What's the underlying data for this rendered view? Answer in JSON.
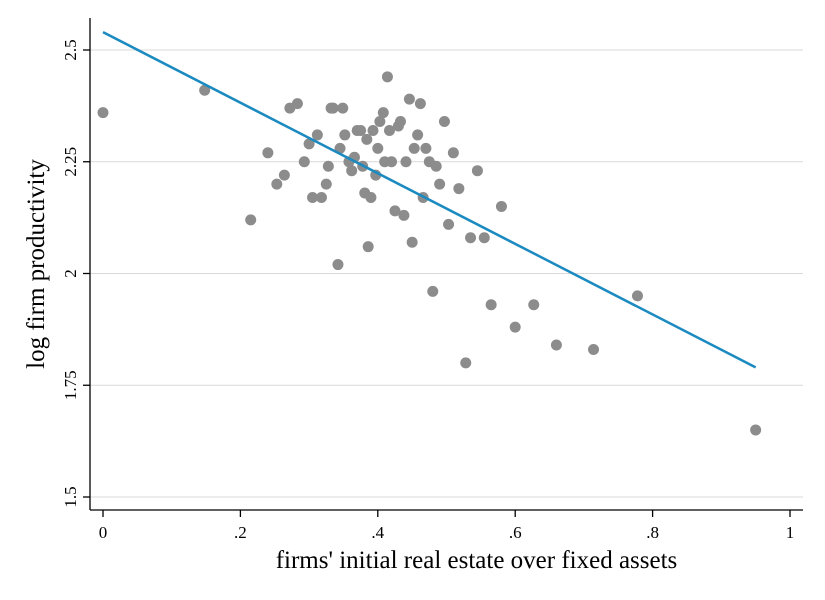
{
  "chart_data": {
    "type": "scatter",
    "title": "",
    "xlabel": "firms' initial real estate over fixed assets",
    "ylabel": "log firm productivity",
    "xlim": [
      0,
      1
    ],
    "ylim": [
      1.5,
      2.5
    ],
    "x_ticks": [
      0,
      0.2,
      0.4,
      0.6,
      0.8,
      1
    ],
    "x_tick_labels": [
      "0",
      ".2",
      ".4",
      ".6",
      ".8",
      "1"
    ],
    "y_ticks": [
      1.5,
      1.75,
      2,
      2.25,
      2.5
    ],
    "y_tick_labels": [
      "1.5",
      "1.75",
      "2",
      "2.25",
      "2.5"
    ],
    "grid": "horizontal",
    "legend": "none",
    "colors": {
      "points": "#8c8c8c",
      "fit_line": "#1a8ac0",
      "grid": "#d9d9d9",
      "axis": "#000000"
    },
    "series": [
      {
        "type": "scatter",
        "x": [
          0.0,
          0.148,
          0.215,
          0.24,
          0.253,
          0.264,
          0.272,
          0.283,
          0.293,
          0.3,
          0.305,
          0.312,
          0.318,
          0.325,
          0.328,
          0.332,
          0.335,
          0.342,
          0.345,
          0.349,
          0.352,
          0.358,
          0.362,
          0.366,
          0.37,
          0.375,
          0.378,
          0.381,
          0.384,
          0.386,
          0.39,
          0.393,
          0.397,
          0.4,
          0.403,
          0.408,
          0.41,
          0.414,
          0.417,
          0.42,
          0.425,
          0.43,
          0.433,
          0.438,
          0.441,
          0.446,
          0.45,
          0.453,
          0.458,
          0.462,
          0.466,
          0.47,
          0.475,
          0.48,
          0.485,
          0.49,
          0.497,
          0.503,
          0.51,
          0.518,
          0.528,
          0.535,
          0.545,
          0.555,
          0.565,
          0.58,
          0.6,
          0.627,
          0.66,
          0.714,
          0.778,
          0.95
        ],
        "y": [
          2.36,
          2.41,
          2.12,
          2.27,
          2.2,
          2.22,
          2.37,
          2.38,
          2.25,
          2.29,
          2.17,
          2.31,
          2.17,
          2.2,
          2.24,
          2.37,
          2.37,
          2.02,
          2.28,
          2.37,
          2.31,
          2.25,
          2.23,
          2.26,
          2.32,
          2.32,
          2.24,
          2.18,
          2.3,
          2.06,
          2.17,
          2.32,
          2.22,
          2.28,
          2.34,
          2.36,
          2.25,
          2.44,
          2.32,
          2.25,
          2.14,
          2.33,
          2.34,
          2.13,
          2.25,
          2.39,
          2.07,
          2.28,
          2.31,
          2.38,
          2.17,
          2.28,
          2.25,
          1.96,
          2.24,
          2.2,
          2.34,
          2.11,
          2.27,
          2.19,
          1.8,
          2.08,
          2.23,
          2.08,
          1.93,
          2.15,
          1.88,
          1.93,
          1.84,
          1.83,
          1.95,
          1.65
        ]
      },
      {
        "type": "line",
        "x": [
          0,
          0.95
        ],
        "y": [
          2.54,
          1.79
        ]
      }
    ]
  }
}
